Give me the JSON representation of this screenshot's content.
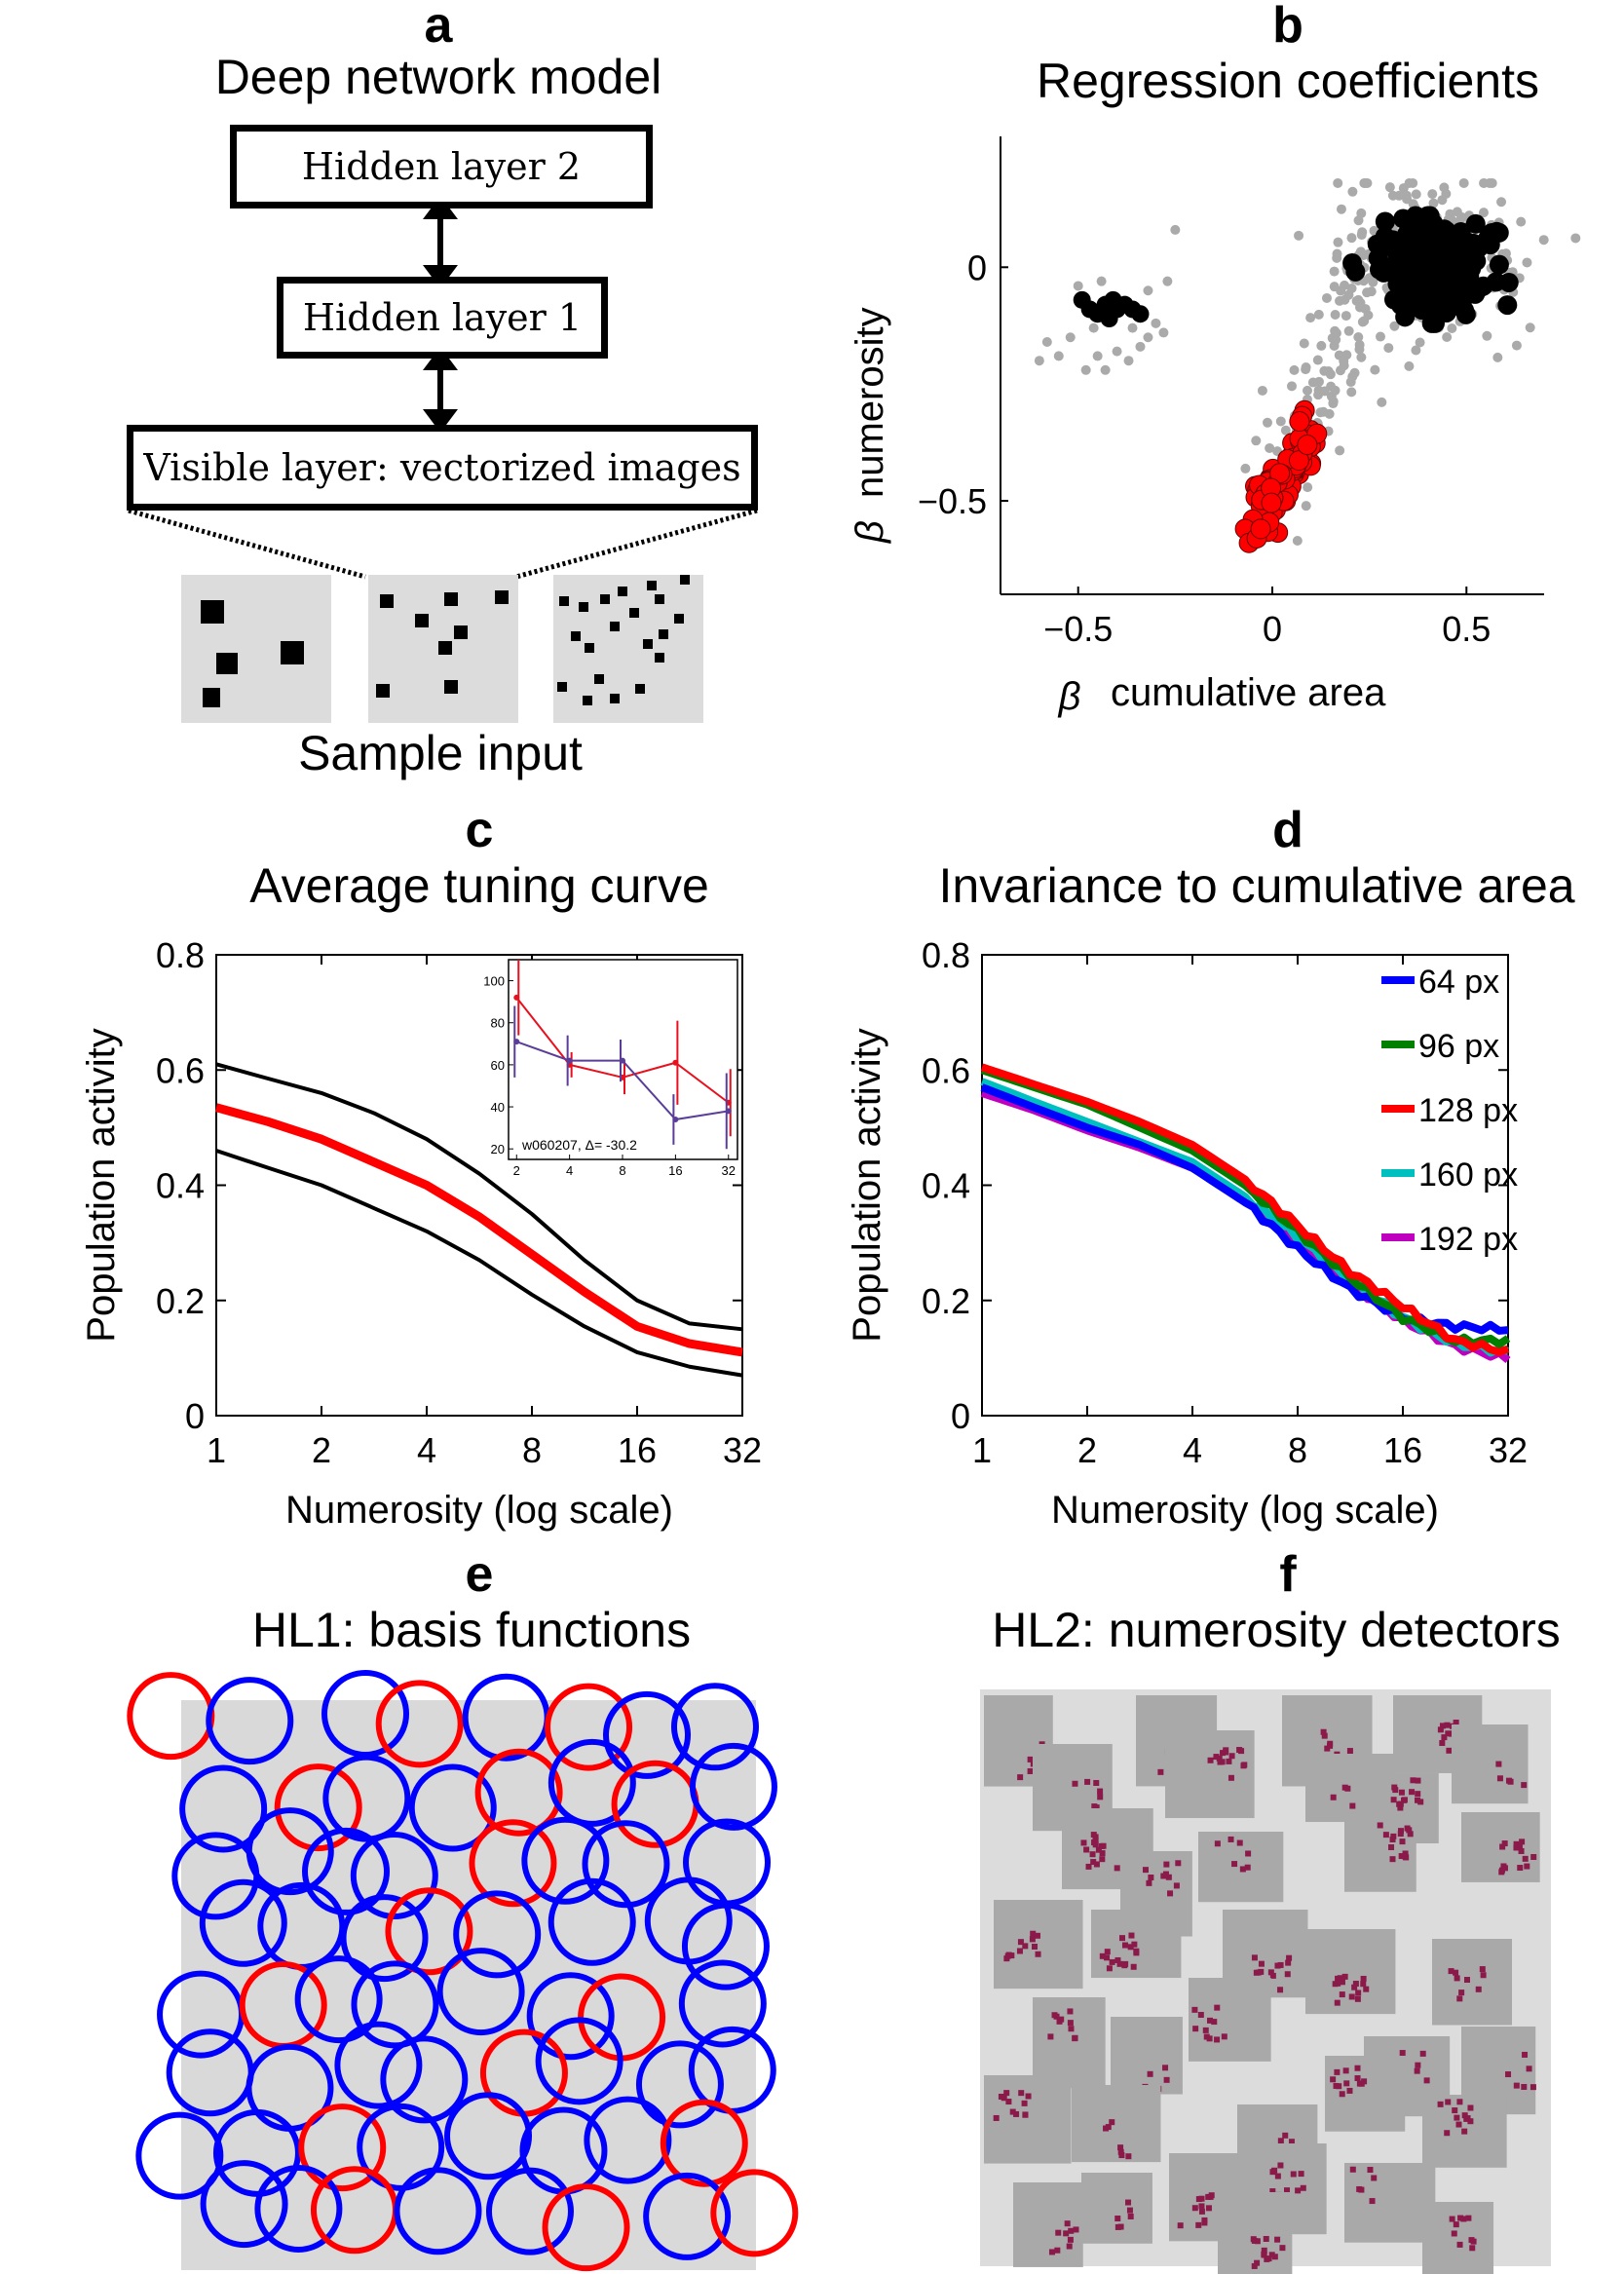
{
  "panels": {
    "a": {
      "letter": "a",
      "title": "Deep network model",
      "layers": [
        "Hidden layer 2",
        "Hidden layer 1",
        "Visible layer: vectorized images"
      ],
      "caption": "Sample input"
    },
    "b": {
      "letter": "b",
      "title": "Regression coefficients"
    },
    "c": {
      "letter": "c",
      "title": "Average tuning curve"
    },
    "d": {
      "letter": "d",
      "title": "Invariance to cumulative area"
    },
    "e": {
      "letter": "e",
      "title": "HL1: basis functions"
    },
    "f": {
      "letter": "f",
      "title": "HL2: numerosity detectors"
    }
  },
  "colors": {
    "red": "#ff0000",
    "blue": "#0000ff",
    "black": "#000000",
    "gray": "#aaaaaa",
    "green": "#007f00",
    "cyan": "#00bfbf",
    "magenta": "#bf00bf",
    "maroon": "#8b1a4a"
  },
  "chart_data": [
    {
      "id": "b",
      "type": "scatter",
      "xlabel": "cumulative area",
      "ylabel": "numerosity",
      "beta_symbol": "β",
      "xlim": [
        -0.7,
        0.7
      ],
      "ylim": [
        -0.7,
        0.28
      ],
      "xticks": [
        -0.5,
        0,
        0.5
      ],
      "xtick_labels": [
        "−0.5",
        "0",
        "0.5"
      ],
      "yticks": [
        -0.5,
        0
      ],
      "ytick_labels": [
        "−0.5",
        "0"
      ],
      "clusters": [
        {
          "color": "black",
          "points": [
            [
              -0.49,
              -0.07
            ],
            [
              -0.47,
              -0.09
            ],
            [
              -0.45,
              -0.1
            ],
            [
              -0.43,
              -0.08
            ],
            [
              -0.41,
              -0.07
            ],
            [
              -0.4,
              -0.09
            ],
            [
              -0.38,
              -0.08
            ],
            [
              -0.36,
              -0.09
            ],
            [
              -0.34,
              -0.1
            ],
            [
              -0.42,
              -0.11
            ]
          ],
          "center": [
            0.43,
            0.0
          ],
          "spread": [
            0.07,
            0.05
          ],
          "count": 240
        },
        {
          "color": "red",
          "center": [
            0.03,
            -0.45
          ],
          "spread": [
            0.035,
            0.055
          ],
          "count": 70,
          "points": [
            [
              -0.05,
              -0.54
            ],
            [
              -0.07,
              -0.56
            ],
            [
              -0.06,
              -0.59
            ],
            [
              -0.04,
              -0.58
            ],
            [
              -0.03,
              -0.56
            ],
            [
              0.07,
              -0.33
            ],
            [
              0.09,
              -0.38
            ]
          ]
        },
        {
          "color": "gray",
          "points": [
            [
              -0.6,
              -0.2
            ],
            [
              -0.55,
              -0.19
            ],
            [
              -0.52,
              -0.15
            ],
            [
              -0.48,
              -0.22
            ],
            [
              -0.45,
              -0.19
            ],
            [
              -0.43,
              -0.22
            ],
            [
              -0.4,
              -0.18
            ],
            [
              -0.37,
              -0.2
            ],
            [
              -0.34,
              -0.17
            ],
            [
              -0.32,
              -0.15
            ],
            [
              -0.3,
              -0.12
            ],
            [
              -0.5,
              -0.04
            ],
            [
              -0.32,
              -0.05
            ],
            [
              -0.27,
              -0.03
            ],
            [
              -0.46,
              -0.13
            ],
            [
              -0.36,
              -0.13
            ],
            [
              -0.58,
              -0.16
            ],
            [
              -0.25,
              0.08
            ],
            [
              -0.28,
              -0.14
            ],
            [
              -0.44,
              -0.03
            ]
          ],
          "band": {
            "from": [
              0.0,
              -0.5
            ],
            "to": [
              0.3,
              0.05
            ],
            "width": 0.05,
            "count": 140
          },
          "halo": {
            "center": [
              0.4,
              0.02
            ],
            "spread": [
              0.14,
              0.1
            ],
            "count": 160
          }
        }
      ]
    },
    {
      "id": "c",
      "type": "line",
      "xlabel": "Numerosity (log scale)",
      "ylabel": "Population activity",
      "xscale": "log2",
      "xlim": [
        1,
        32
      ],
      "ylim": [
        0,
        0.8
      ],
      "xticks": [
        1,
        2,
        4,
        8,
        16,
        32
      ],
      "xtick_labels": [
        "1",
        "2",
        "4",
        "8",
        "16",
        "32"
      ],
      "yticks": [
        0,
        0.2,
        0.4,
        0.6,
        0.8
      ],
      "ytick_labels": [
        "0",
        "0.2",
        "0.4",
        "0.6",
        "0.8"
      ],
      "x": [
        1,
        1.41,
        2,
        2.83,
        4,
        5.66,
        8,
        11.3,
        16,
        22.6,
        32
      ],
      "series": [
        {
          "color": "black",
          "width": 4,
          "values": [
            0.61,
            0.585,
            0.56,
            0.525,
            0.48,
            0.42,
            0.35,
            0.27,
            0.2,
            0.16,
            0.15
          ]
        },
        {
          "color": "red",
          "width": 9,
          "values": [
            0.535,
            0.51,
            0.48,
            0.44,
            0.4,
            0.345,
            0.28,
            0.215,
            0.155,
            0.125,
            0.11
          ]
        },
        {
          "color": "black",
          "width": 4,
          "values": [
            0.46,
            0.43,
            0.4,
            0.36,
            0.32,
            0.27,
            0.21,
            0.155,
            0.11,
            0.085,
            0.07
          ]
        }
      ],
      "inset": {
        "label": "w060207, Δ= -30.2",
        "xlim": [
          1.8,
          36
        ],
        "ylim": [
          15,
          110
        ],
        "xticks": [
          2,
          4,
          8,
          16,
          32
        ],
        "xtick_labels": [
          "2",
          "4",
          "8",
          "16",
          "32"
        ],
        "yticks": [
          20,
          40,
          60,
          80,
          100
        ],
        "ytick_labels": [
          "20",
          "40",
          "60",
          "80",
          "100"
        ],
        "x": [
          2,
          4,
          8,
          16,
          32
        ],
        "series": [
          {
            "color": "red",
            "values": [
              92,
              60,
              54,
              61,
              42
            ],
            "err": [
              18,
              6,
              8,
              20,
              16
            ]
          },
          {
            "color": "purple",
            "values": [
              71,
              62,
              62,
              34,
              38
            ],
            "err": [
              17,
              12,
              10,
              12,
              18
            ]
          }
        ]
      }
    },
    {
      "id": "d",
      "type": "line",
      "xlabel": "Numerosity (log scale)",
      "ylabel": "Population activity",
      "xscale": "log2",
      "xlim": [
        1,
        32
      ],
      "ylim": [
        0,
        0.8
      ],
      "xticks": [
        1,
        2,
        4,
        8,
        16,
        32
      ],
      "xtick_labels": [
        "1",
        "2",
        "4",
        "8",
        "16",
        "32"
      ],
      "yticks": [
        0,
        0.2,
        0.4,
        0.6,
        0.8
      ],
      "ytick_labels": [
        "0",
        "0.2",
        "0.4",
        "0.6",
        "0.8"
      ],
      "legend": "top-right",
      "x": [
        1,
        1.41,
        2,
        2.83,
        4,
        5.66,
        8,
        11.3,
        16,
        22.6,
        32
      ],
      "series": [
        {
          "name": "64 px",
          "color": "blue",
          "values": [
            0.57,
            0.535,
            0.5,
            0.47,
            0.43,
            0.37,
            0.29,
            0.22,
            0.17,
            0.155,
            0.15
          ]
        },
        {
          "name": "96 px",
          "color": "green",
          "values": [
            0.6,
            0.57,
            0.54,
            0.5,
            0.46,
            0.4,
            0.32,
            0.24,
            0.17,
            0.13,
            0.13
          ]
        },
        {
          "name": "128 px",
          "color": "red",
          "values": [
            0.605,
            0.575,
            0.545,
            0.51,
            0.47,
            0.41,
            0.33,
            0.25,
            0.19,
            0.13,
            0.11
          ]
        },
        {
          "name": "160 px",
          "color": "cyan",
          "values": [
            0.58,
            0.545,
            0.51,
            0.475,
            0.44,
            0.38,
            0.31,
            0.235,
            0.17,
            0.125,
            0.11
          ]
        },
        {
          "name": "192 px",
          "color": "magenta",
          "values": [
            0.56,
            0.53,
            0.495,
            0.465,
            0.43,
            0.375,
            0.3,
            0.23,
            0.165,
            0.12,
            0.1
          ]
        }
      ]
    }
  ]
}
